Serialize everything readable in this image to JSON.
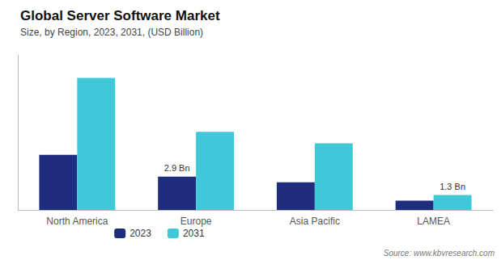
{
  "chart_data": {
    "type": "bar",
    "title": "Global Server Software Market",
    "subtitle": "Size, by Region, 2023, 2031, (USD Billion)",
    "source": "Source: www.kbvresearch.com",
    "categories": [
      "North America",
      "Europe",
      "Asia Pacific",
      "LAMEA"
    ],
    "series": [
      {
        "name": "2023",
        "color": "#1e2d7d",
        "values": [
          4.8,
          2.9,
          2.4,
          0.8
        ]
      },
      {
        "name": "2031",
        "color": "#40c8d8",
        "values": [
          11.5,
          6.8,
          5.8,
          1.3
        ]
      }
    ],
    "annotations": [
      {
        "series": "2023",
        "category": "Europe",
        "text": "2.9 Bn"
      },
      {
        "series": "2031",
        "category": "LAMEA",
        "text": "1.3 Bn"
      }
    ],
    "ylim": [
      0,
      13.5
    ],
    "grid": false,
    "legend": "lower left",
    "tick_labels": "x"
  }
}
